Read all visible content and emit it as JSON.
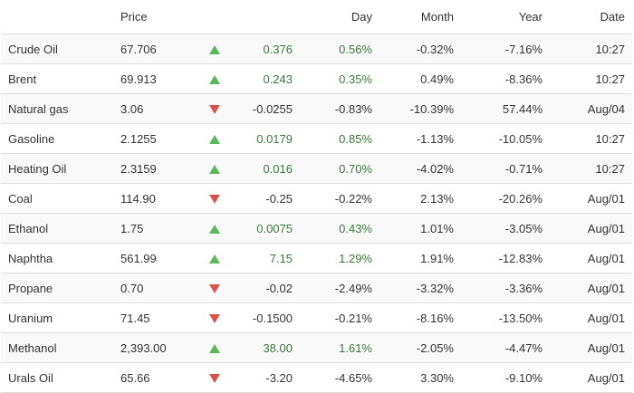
{
  "headers": {
    "name": "",
    "price": "Price",
    "arrow": "",
    "change": "",
    "day": "Day",
    "month": "Month",
    "year": "Year",
    "date": "Date"
  },
  "colors": {
    "up": "#5cb85c",
    "down": "#d9534f",
    "positive_text": "#3c763d"
  },
  "rows": [
    {
      "name": "Crude Oil",
      "price": "67.706",
      "direction": "up",
      "change": "0.376",
      "day": "0.56%",
      "month": "-0.32%",
      "year": "-7.16%",
      "date": "10:27"
    },
    {
      "name": "Brent",
      "price": "69.913",
      "direction": "up",
      "change": "0.243",
      "day": "0.35%",
      "month": "0.49%",
      "year": "-8.36%",
      "date": "10:27"
    },
    {
      "name": "Natural gas",
      "price": "3.06",
      "direction": "down",
      "change": "-0.0255",
      "day": "-0.83%",
      "month": "-10.39%",
      "year": "57.44%",
      "date": "Aug/04"
    },
    {
      "name": "Gasoline",
      "price": "2.1255",
      "direction": "up",
      "change": "0.0179",
      "day": "0.85%",
      "month": "-1.13%",
      "year": "-10.05%",
      "date": "10:27"
    },
    {
      "name": "Heating Oil",
      "price": "2.3159",
      "direction": "up",
      "change": "0.016",
      "day": "0.70%",
      "month": "-4.02%",
      "year": "-0.71%",
      "date": "10:27"
    },
    {
      "name": "Coal",
      "price": "114.90",
      "direction": "down",
      "change": "-0.25",
      "day": "-0.22%",
      "month": "2.13%",
      "year": "-20.26%",
      "date": "Aug/01"
    },
    {
      "name": "Ethanol",
      "price": "1.75",
      "direction": "up",
      "change": "0.0075",
      "day": "0.43%",
      "month": "1.01%",
      "year": "-3.05%",
      "date": "Aug/01"
    },
    {
      "name": "Naphtha",
      "price": "561.99",
      "direction": "up",
      "change": "7.15",
      "day": "1.29%",
      "month": "1.91%",
      "year": "-12.83%",
      "date": "Aug/01"
    },
    {
      "name": "Propane",
      "price": "0.70",
      "direction": "down",
      "change": "-0.02",
      "day": "-2.49%",
      "month": "-3.32%",
      "year": "-3.36%",
      "date": "Aug/01"
    },
    {
      "name": "Uranium",
      "price": "71.45",
      "direction": "down",
      "change": "-0.1500",
      "day": "-0.21%",
      "month": "-8.16%",
      "year": "-13.50%",
      "date": "Aug/01"
    },
    {
      "name": "Methanol",
      "price": "2,393.00",
      "direction": "up",
      "change": "38.00",
      "day": "1.61%",
      "month": "-2.05%",
      "year": "-4.47%",
      "date": "Aug/01"
    },
    {
      "name": "Urals Oil",
      "price": "65.66",
      "direction": "down",
      "change": "-3.20",
      "day": "-4.65%",
      "month": "3.30%",
      "year": "-9.10%",
      "date": "Aug/01"
    }
  ]
}
